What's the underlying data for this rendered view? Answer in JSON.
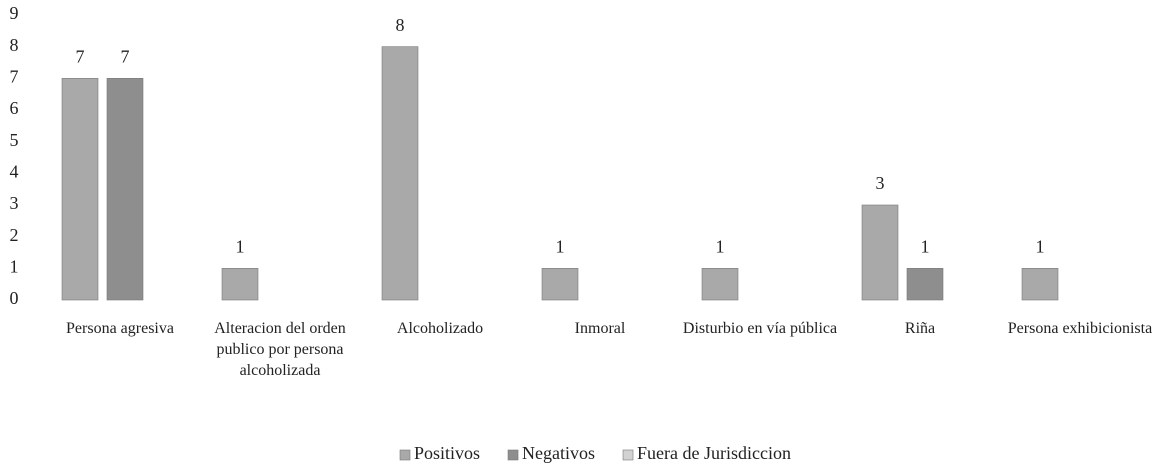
{
  "chart_data": {
    "type": "bar",
    "categories": [
      "Persona agresiva",
      "Alteracion del orden publico por persona alcoholizada",
      "Alcoholizado",
      "Inmoral",
      "Disturbio en vía pública",
      "Riña",
      "Persona exhibicionista"
    ],
    "series": [
      {
        "name": "Positivos",
        "color": "#a9a9a9",
        "values": [
          7,
          1,
          8,
          1,
          1,
          3,
          1
        ]
      },
      {
        "name": "Negativos",
        "color": "#8e8e8e",
        "values": [
          7,
          null,
          null,
          null,
          null,
          1,
          null
        ]
      },
      {
        "name": "Fuera de Jurisdiccion",
        "color": "#d2d2d2",
        "values": [
          null,
          null,
          null,
          null,
          null,
          null,
          null
        ]
      }
    ],
    "ylim": [
      0,
      9
    ],
    "yticks": [
      0,
      1,
      2,
      3,
      4,
      5,
      6,
      7,
      8,
      9
    ],
    "grid": false,
    "legend": "bottom"
  }
}
